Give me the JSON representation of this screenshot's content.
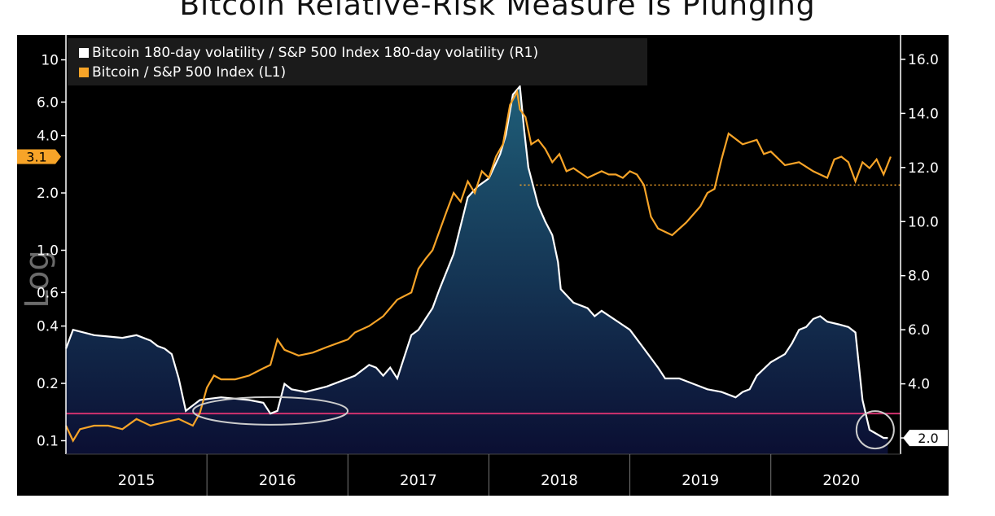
{
  "title": "Bitcoin Relative-Risk Measure Is Plunging",
  "footer_text": "",
  "colors": {
    "background": "#000000",
    "ratio_line": "#f7a428",
    "volatility_line": "#ffffff",
    "area_top": "#1f5e78",
    "area_bottom": "#0b0f33",
    "reference_line": "#d0316e",
    "dotted_reference": "#f7a428",
    "annotation_circle": "#cccccc"
  },
  "chart_data": {
    "type": "line",
    "title": "Bitcoin Relative-Risk Measure Is Plunging",
    "left_axis": {
      "label": "Log",
      "scale": "log",
      "range": [
        0.085,
        13.5
      ],
      "ticks": [
        "0.1",
        "0.2",
        "0.4",
        "0.6",
        "1.0",
        "2.0",
        "4.0",
        "6.0",
        "10"
      ],
      "tick_values": [
        0.1,
        0.2,
        0.4,
        0.6,
        1.0,
        2.0,
        4.0,
        6.0,
        10
      ]
    },
    "right_axis": {
      "scale": "linear",
      "range": [
        1.4,
        16.9
      ],
      "ticks": [
        "2.0",
        "4.0",
        "6.0",
        "8.0",
        "10.0",
        "12.0",
        "14.0",
        "16.0"
      ],
      "tick_values": [
        2,
        4,
        6,
        8,
        10,
        12,
        14,
        16
      ]
    },
    "x_axis": {
      "labels": [
        "2015",
        "2016",
        "2017",
        "2018",
        "2019",
        "2020"
      ],
      "range": [
        2014.5,
        2020.42
      ]
    },
    "legend": {
      "placement": "top-left",
      "entries": [
        {
          "label": "Bitcoin 180-day volatility / S&P 500 Index 180-day volatility (R1)",
          "color": "#ffffff"
        },
        {
          "label": "Bitcoin / S&P 500 Index (L1)",
          "color": "#f7a428"
        }
      ]
    },
    "last_value_tags": {
      "left": "3.1",
      "right": "2.0"
    },
    "horizontal_reference_right": 2.9,
    "dotted_reference_left": 2.2,
    "series": [
      {
        "name": "Bitcoin 180-day volatility / S&P 500 Index 180-day volatility (R1)",
        "axis": "right",
        "x": [
          2014.5,
          2014.55,
          2014.7,
          2014.9,
          2015.0,
          2015.1,
          2015.15,
          2015.2,
          2015.25,
          2015.3,
          2015.35,
          2015.45,
          2015.6,
          2015.8,
          2015.9,
          2015.95,
          2016.0,
          2016.05,
          2016.1,
          2016.2,
          2016.35,
          2016.45,
          2016.55,
          2016.65,
          2016.7,
          2016.75,
          2016.8,
          2016.85,
          2016.95,
          2017.0,
          2017.05,
          2017.1,
          2017.15,
          2017.25,
          2017.35,
          2017.42,
          2017.5,
          2017.58,
          2017.62,
          2017.67,
          2017.72,
          2017.75,
          2017.78,
          2017.85,
          2017.9,
          2017.95,
          2017.99,
          2018.01,
          2018.1,
          2018.2,
          2018.25,
          2018.3,
          2018.5,
          2018.6,
          2018.7,
          2018.75,
          2018.85,
          2018.95,
          2019.05,
          2019.15,
          2019.25,
          2019.3,
          2019.35,
          2019.4,
          2019.5,
          2019.6,
          2019.65,
          2019.7,
          2019.75,
          2019.8,
          2019.85,
          2019.9,
          2019.98,
          2020.05,
          2020.1,
          2020.15,
          2020.2,
          2020.3,
          2020.33
        ],
        "values": [
          5.3,
          6.0,
          5.8,
          5.7,
          5.8,
          5.6,
          5.4,
          5.3,
          5.1,
          4.2,
          3.0,
          3.4,
          3.5,
          3.4,
          3.3,
          2.9,
          3.0,
          4.0,
          3.8,
          3.7,
          3.9,
          4.1,
          4.3,
          4.7,
          4.6,
          4.3,
          4.6,
          4.2,
          5.8,
          6.0,
          6.4,
          6.8,
          7.5,
          8.8,
          10.9,
          11.3,
          11.6,
          12.5,
          13.2,
          14.7,
          15.0,
          13.4,
          12.0,
          10.6,
          10.0,
          9.5,
          8.5,
          7.5,
          7.0,
          6.8,
          6.5,
          6.7,
          6.0,
          5.3,
          4.6,
          4.2,
          4.2,
          4.0,
          3.8,
          3.7,
          3.5,
          3.7,
          3.8,
          4.3,
          4.8,
          5.1,
          5.5,
          6.0,
          6.1,
          6.4,
          6.5,
          6.3,
          6.2,
          6.1,
          5.9,
          3.4,
          2.3,
          2.0,
          2.0
        ]
      },
      {
        "name": "Bitcoin / S&P 500 Index (L1)",
        "axis": "left",
        "x": [
          2014.5,
          2014.55,
          2014.6,
          2014.7,
          2014.8,
          2014.9,
          2015.0,
          2015.1,
          2015.2,
          2015.3,
          2015.4,
          2015.45,
          2015.5,
          2015.55,
          2015.6,
          2015.7,
          2015.8,
          2015.9,
          2015.95,
          2016.0,
          2016.05,
          2016.15,
          2016.25,
          2016.35,
          2016.45,
          2016.5,
          2016.55,
          2016.65,
          2016.75,
          2016.85,
          2016.95,
          2017.0,
          2017.05,
          2017.1,
          2017.2,
          2017.25,
          2017.3,
          2017.35,
          2017.4,
          2017.45,
          2017.5,
          2017.55,
          2017.6,
          2017.65,
          2017.7,
          2017.72,
          2017.76,
          2017.8,
          2017.85,
          2017.9,
          2017.95,
          2018.0,
          2018.05,
          2018.1,
          2018.2,
          2018.3,
          2018.35,
          2018.4,
          2018.45,
          2018.5,
          2018.55,
          2018.6,
          2018.65,
          2018.7,
          2018.8,
          2018.9,
          2019.0,
          2019.05,
          2019.1,
          2019.15,
          2019.2,
          2019.3,
          2019.4,
          2019.45,
          2019.5,
          2019.6,
          2019.7,
          2019.8,
          2019.9,
          2019.95,
          2020.0,
          2020.05,
          2020.1,
          2020.15,
          2020.2,
          2020.25,
          2020.3,
          2020.35
        ],
        "values": [
          0.12,
          0.1,
          0.115,
          0.12,
          0.12,
          0.115,
          0.13,
          0.12,
          0.125,
          0.13,
          0.12,
          0.14,
          0.19,
          0.22,
          0.21,
          0.21,
          0.22,
          0.24,
          0.25,
          0.34,
          0.3,
          0.28,
          0.29,
          0.31,
          0.33,
          0.34,
          0.37,
          0.4,
          0.45,
          0.55,
          0.6,
          0.8,
          0.9,
          1.0,
          1.6,
          2.0,
          1.8,
          2.3,
          2.0,
          2.6,
          2.4,
          3.1,
          3.6,
          5.8,
          6.8,
          5.5,
          5.0,
          3.6,
          3.8,
          3.4,
          2.9,
          3.2,
          2.6,
          2.7,
          2.4,
          2.6,
          2.5,
          2.5,
          2.4,
          2.6,
          2.5,
          2.2,
          1.5,
          1.3,
          1.2,
          1.4,
          1.7,
          2.0,
          2.1,
          3.0,
          4.1,
          3.6,
          3.8,
          3.2,
          3.3,
          2.8,
          2.9,
          2.6,
          2.4,
          3.0,
          3.1,
          2.9,
          2.3,
          2.9,
          2.7,
          3.0,
          2.5,
          3.1
        ]
      }
    ]
  }
}
